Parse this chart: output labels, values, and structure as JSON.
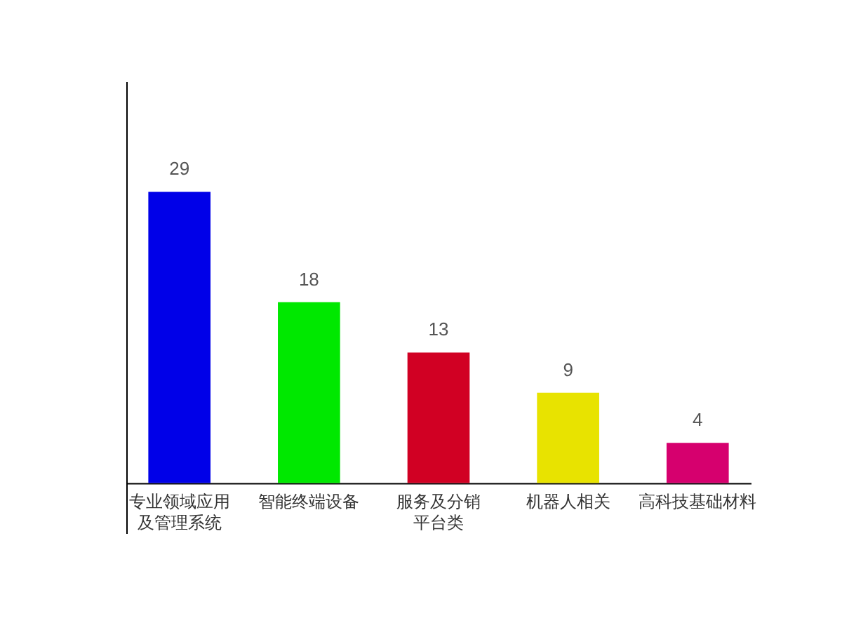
{
  "chart_data": {
    "type": "bar",
    "categories": [
      "专业领域应用及管理系统",
      "智能终端设备",
      "服务及分销平台类",
      "机器人相关",
      "高科技基础材料"
    ],
    "values": [
      29,
      18,
      13,
      9,
      4
    ],
    "colors": [
      "#0000e8",
      "#00e800",
      "#d10023",
      "#e8e300",
      "#d6006e"
    ],
    "ylim": [
      -5,
      40
    ],
    "data_labels": true,
    "tick_labels": "x"
  }
}
